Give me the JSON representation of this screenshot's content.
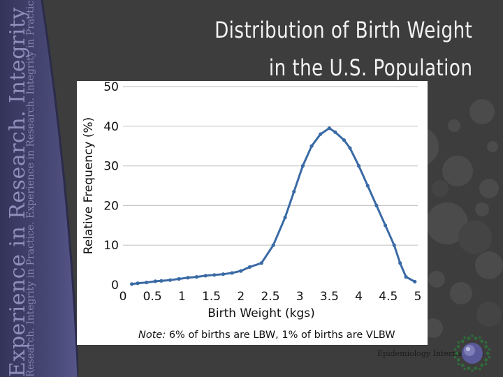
{
  "slide": {
    "title_line1": "Distribution of Birth Weight",
    "title_line2": "in the U.S. Population",
    "sidebar_text_large": "Experience in Research.  Integrity in Practice.  Experience in Research",
    "sidebar_text_small": "Research.  Integrity in Practice.  Experience in Research.  Integrity in Practice.  Experience in Researc",
    "logo_text": "Epidemiology International",
    "colors": {
      "background": "#3d3d3d",
      "sidebar": "#4a4a78",
      "line": "#3a6aa5",
      "title": "#f2f2f2"
    }
  },
  "chart_data": {
    "type": "line",
    "title": "",
    "xlabel": "Birth Weight (kgs)",
    "ylabel": "Relative Frequency (%)",
    "xlim": [
      0,
      5
    ],
    "ylim": [
      0,
      50
    ],
    "xticks": [
      "0",
      "0.5",
      "1",
      "1.5",
      "2",
      "2.5",
      "3",
      "3.5",
      "4",
      "4.5",
      "5"
    ],
    "yticks": [
      "0",
      "10",
      "20",
      "30",
      "40",
      "50"
    ],
    "grid": true,
    "series": [
      {
        "color": "#3a6aa5",
        "x": [
          0.15,
          0.25,
          0.4,
          0.55,
          0.65,
          0.8,
          0.95,
          1.1,
          1.25,
          1.4,
          1.55,
          1.7,
          1.85,
          2.0,
          2.15,
          2.35,
          2.55,
          2.75,
          2.9,
          3.05,
          3.2,
          3.35,
          3.5,
          3.6,
          3.75,
          3.85,
          4.0,
          4.15,
          4.3,
          4.45,
          4.6,
          4.7,
          4.8,
          4.95
        ],
        "y": [
          0.2,
          0.4,
          0.6,
          0.9,
          1.0,
          1.2,
          1.5,
          1.8,
          2.0,
          2.3,
          2.5,
          2.7,
          3.0,
          3.5,
          4.5,
          5.5,
          10.0,
          17.0,
          23.5,
          30.0,
          35.0,
          38.0,
          39.5,
          38.5,
          36.5,
          34.5,
          30.0,
          25.0,
          20.0,
          15.0,
          10.0,
          5.5,
          2.0,
          0.8
        ]
      }
    ],
    "note_label": "Note:",
    "note_text": " 6% of births are LBW, 1% of births are VLBW"
  }
}
